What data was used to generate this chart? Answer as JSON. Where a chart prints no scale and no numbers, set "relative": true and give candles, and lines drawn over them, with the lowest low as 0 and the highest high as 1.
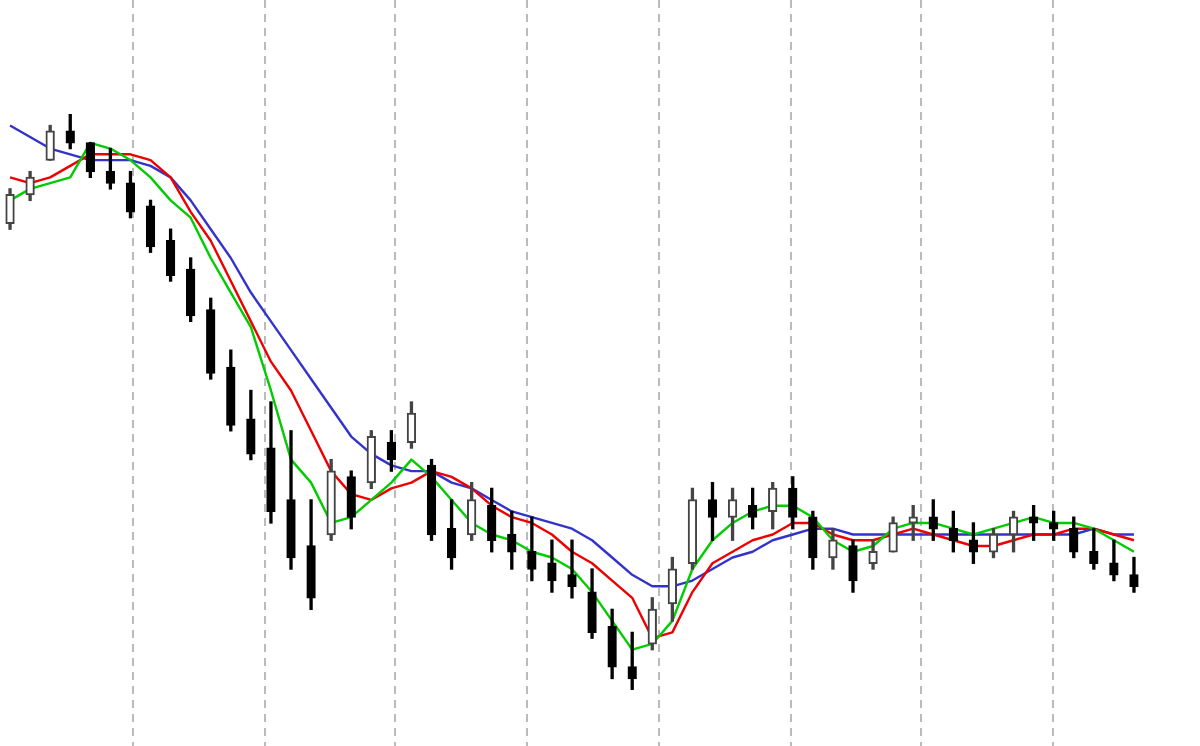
{
  "chart_data": {
    "type": "candlestick",
    "relative": true,
    "legend": false,
    "grid": "x",
    "categories": [
      null,
      null,
      null,
      null,
      null,
      null,
      null,
      null,
      null,
      null,
      null,
      null,
      null,
      null,
      null,
      null,
      null,
      null,
      null,
      null,
      null,
      null,
      null,
      null,
      null,
      null,
      null,
      null,
      null,
      null,
      null,
      null,
      null,
      null,
      null,
      null,
      null,
      null,
      null,
      null,
      null,
      null,
      null,
      null,
      null,
      null,
      null,
      null,
      null,
      null,
      null,
      null,
      null,
      null,
      null,
      null,
      null
    ],
    "ohlc": [
      [
        0.81,
        0.87,
        0.8,
        0.86
      ],
      [
        0.86,
        0.9,
        0.85,
        0.89
      ],
      [
        0.92,
        0.98,
        0.92,
        0.97
      ],
      [
        0.97,
        1.0,
        0.94,
        0.95
      ],
      [
        0.95,
        0.95,
        0.89,
        0.9
      ],
      [
        0.9,
        0.94,
        0.87,
        0.88
      ],
      [
        0.88,
        0.9,
        0.82,
        0.83
      ],
      [
        0.84,
        0.85,
        0.76,
        0.77
      ],
      [
        0.78,
        0.8,
        0.71,
        0.72
      ],
      [
        0.73,
        0.75,
        0.64,
        0.65
      ],
      [
        0.66,
        0.68,
        0.54,
        0.55
      ],
      [
        0.56,
        0.59,
        0.45,
        0.46
      ],
      [
        0.47,
        0.52,
        0.4,
        0.41
      ],
      [
        0.42,
        0.5,
        0.29,
        0.31
      ],
      [
        0.33,
        0.45,
        0.21,
        0.23
      ],
      [
        0.25,
        0.33,
        0.14,
        0.16
      ],
      [
        0.27,
        0.4,
        0.26,
        0.38
      ],
      [
        0.37,
        0.38,
        0.28,
        0.3
      ],
      [
        0.36,
        0.45,
        0.35,
        0.44
      ],
      [
        0.43,
        0.45,
        0.38,
        0.4
      ],
      [
        0.43,
        0.5,
        0.42,
        0.48
      ],
      [
        0.39,
        0.4,
        0.26,
        0.27
      ],
      [
        0.28,
        0.33,
        0.21,
        0.23
      ],
      [
        0.27,
        0.36,
        0.26,
        0.33
      ],
      [
        0.32,
        0.35,
        0.24,
        0.26
      ],
      [
        0.27,
        0.31,
        0.21,
        0.24
      ],
      [
        0.24,
        0.3,
        0.19,
        0.21
      ],
      [
        0.22,
        0.26,
        0.17,
        0.19
      ],
      [
        0.2,
        0.26,
        0.16,
        0.18
      ],
      [
        0.17,
        0.21,
        0.09,
        0.1
      ],
      [
        0.11,
        0.14,
        0.02,
        0.04
      ],
      [
        0.04,
        0.1,
        0.0,
        0.02
      ],
      [
        0.08,
        0.16,
        0.07,
        0.14
      ],
      [
        0.15,
        0.23,
        0.12,
        0.21
      ],
      [
        0.22,
        0.35,
        0.21,
        0.33
      ],
      [
        0.33,
        0.36,
        0.26,
        0.3
      ],
      [
        0.3,
        0.35,
        0.26,
        0.33
      ],
      [
        0.32,
        0.35,
        0.28,
        0.3
      ],
      [
        0.31,
        0.36,
        0.28,
        0.35
      ],
      [
        0.35,
        0.37,
        0.28,
        0.3
      ],
      [
        0.3,
        0.31,
        0.21,
        0.23
      ],
      [
        0.23,
        0.28,
        0.21,
        0.26
      ],
      [
        0.25,
        0.26,
        0.17,
        0.19
      ],
      [
        0.22,
        0.26,
        0.21,
        0.24
      ],
      [
        0.24,
        0.3,
        0.24,
        0.29
      ],
      [
        0.29,
        0.32,
        0.26,
        0.3
      ],
      [
        0.3,
        0.33,
        0.26,
        0.28
      ],
      [
        0.28,
        0.31,
        0.24,
        0.26
      ],
      [
        0.26,
        0.29,
        0.22,
        0.24
      ],
      [
        0.24,
        0.28,
        0.23,
        0.27
      ],
      [
        0.27,
        0.31,
        0.24,
        0.3
      ],
      [
        0.3,
        0.32,
        0.26,
        0.29
      ],
      [
        0.29,
        0.31,
        0.26,
        0.28
      ],
      [
        0.28,
        0.3,
        0.23,
        0.24
      ],
      [
        0.24,
        0.28,
        0.21,
        0.22
      ],
      [
        0.22,
        0.26,
        0.19,
        0.2
      ],
      [
        0.2,
        0.23,
        0.17,
        0.18
      ]
    ],
    "series": [
      {
        "type": "line",
        "color": "#00cc00",
        "values": [
          0.85,
          0.87,
          0.88,
          0.89,
          0.95,
          0.94,
          0.92,
          0.89,
          0.85,
          0.82,
          0.75,
          0.69,
          0.63,
          0.52,
          0.4,
          0.36,
          0.29,
          0.3,
          0.33,
          0.36,
          0.4,
          0.37,
          0.33,
          0.29,
          0.27,
          0.26,
          0.24,
          0.23,
          0.21,
          0.17,
          0.12,
          0.07,
          0.08,
          0.12,
          0.21,
          0.26,
          0.29,
          0.31,
          0.32,
          0.32,
          0.3,
          0.26,
          0.24,
          0.25,
          0.28,
          0.29,
          0.29,
          0.28,
          0.27,
          0.28,
          0.29,
          0.3,
          0.29,
          0.29,
          0.28,
          0.26,
          0.24
        ]
      },
      {
        "type": "line",
        "color": "#ee0000",
        "values": [
          0.89,
          0.88,
          0.89,
          0.91,
          0.93,
          0.93,
          0.93,
          0.92,
          0.89,
          0.83,
          0.78,
          0.71,
          0.64,
          0.57,
          0.52,
          0.45,
          0.38,
          0.34,
          0.33,
          0.35,
          0.36,
          0.38,
          0.37,
          0.35,
          0.32,
          0.3,
          0.29,
          0.27,
          0.24,
          0.22,
          0.19,
          0.16,
          0.09,
          0.1,
          0.17,
          0.22,
          0.24,
          0.26,
          0.27,
          0.29,
          0.29,
          0.27,
          0.26,
          0.26,
          0.27,
          0.28,
          0.27,
          0.26,
          0.25,
          0.25,
          0.26,
          0.27,
          0.27,
          0.28,
          0.28,
          0.27,
          0.26
        ]
      },
      {
        "type": "line",
        "color": "#3333cc",
        "values": [
          0.98,
          0.96,
          0.94,
          0.93,
          0.92,
          0.92,
          0.92,
          0.91,
          0.89,
          0.85,
          0.8,
          0.75,
          0.69,
          0.64,
          0.59,
          0.54,
          0.49,
          0.44,
          0.41,
          0.39,
          0.38,
          0.38,
          0.36,
          0.35,
          0.33,
          0.31,
          0.3,
          0.29,
          0.28,
          0.26,
          0.23,
          0.2,
          0.18,
          0.18,
          0.19,
          0.21,
          0.23,
          0.24,
          0.26,
          0.27,
          0.28,
          0.28,
          0.27,
          0.27,
          0.27,
          0.27,
          0.27,
          0.27,
          0.27,
          0.27,
          0.27,
          0.27,
          0.27,
          0.27,
          0.28,
          0.27,
          0.27
        ]
      }
    ]
  }
}
